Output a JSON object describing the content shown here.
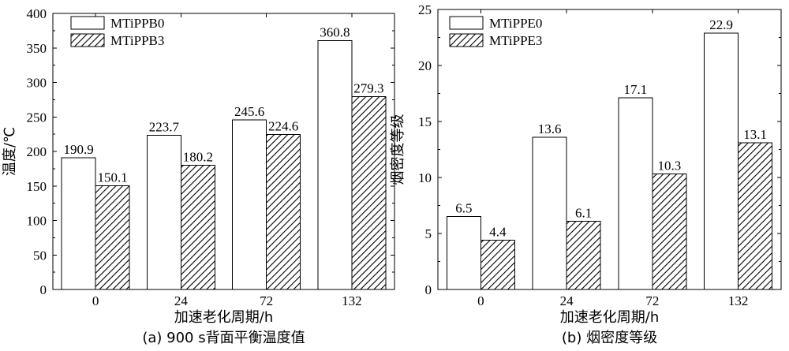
{
  "chart_data": [
    {
      "type": "bar",
      "caption": "(a) 900 s背面平衡温度值",
      "xlabel": "加速老化周期/h",
      "ylabel": "温度/℃",
      "categories": [
        "0",
        "24",
        "72",
        "132"
      ],
      "ylim": [
        0,
        400
      ],
      "yticks": [
        0,
        50,
        100,
        150,
        200,
        250,
        300,
        350,
        400
      ],
      "legend_position": "top-left",
      "series": [
        {
          "name": "MTiPPB0",
          "style": "white",
          "values": [
            190.9,
            223.7,
            245.6,
            360.8
          ],
          "labels": [
            "190.9",
            "223.7",
            "245.6",
            "360.8"
          ]
        },
        {
          "name": "MTiPPB3",
          "style": "hatched",
          "values": [
            150.1,
            180.2,
            224.6,
            279.3
          ],
          "labels": [
            "150.1",
            "180.2",
            "224.6",
            "279.3"
          ]
        }
      ]
    },
    {
      "type": "bar",
      "caption": "(b) 烟密度等级",
      "xlabel": "加速老化周期/h",
      "ylabel": "烟密度等级",
      "categories": [
        "0",
        "24",
        "72",
        "132"
      ],
      "ylim": [
        0,
        25
      ],
      "yticks": [
        0,
        5,
        10,
        15,
        20,
        25
      ],
      "legend_position": "top-left",
      "series": [
        {
          "name": "MTiPPE0",
          "style": "white",
          "values": [
            6.5,
            13.6,
            17.1,
            22.9
          ],
          "labels": [
            "6.5",
            "13.6",
            "17.1",
            "22.9"
          ]
        },
        {
          "name": "MTiPPE3",
          "style": "hatched",
          "values": [
            4.4,
            6.1,
            10.3,
            13.1
          ],
          "labels": [
            "4.4",
            "6.1",
            "10.3",
            "13.1"
          ]
        }
      ]
    }
  ]
}
